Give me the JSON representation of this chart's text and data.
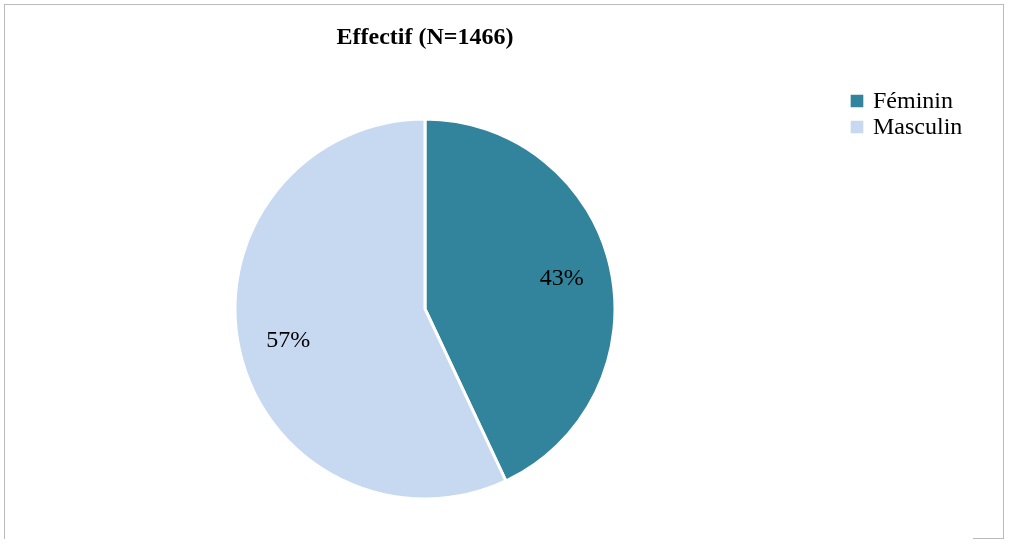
{
  "chart_data": {
    "type": "pie",
    "title": "Effectif (N=1466)",
    "categories": [
      "Féminin",
      "Masculin"
    ],
    "values": [
      43,
      57
    ],
    "colors": [
      "#31849b",
      "#c6d9f1"
    ],
    "value_labels": [
      "43%",
      "57%"
    ],
    "legend": "right"
  }
}
